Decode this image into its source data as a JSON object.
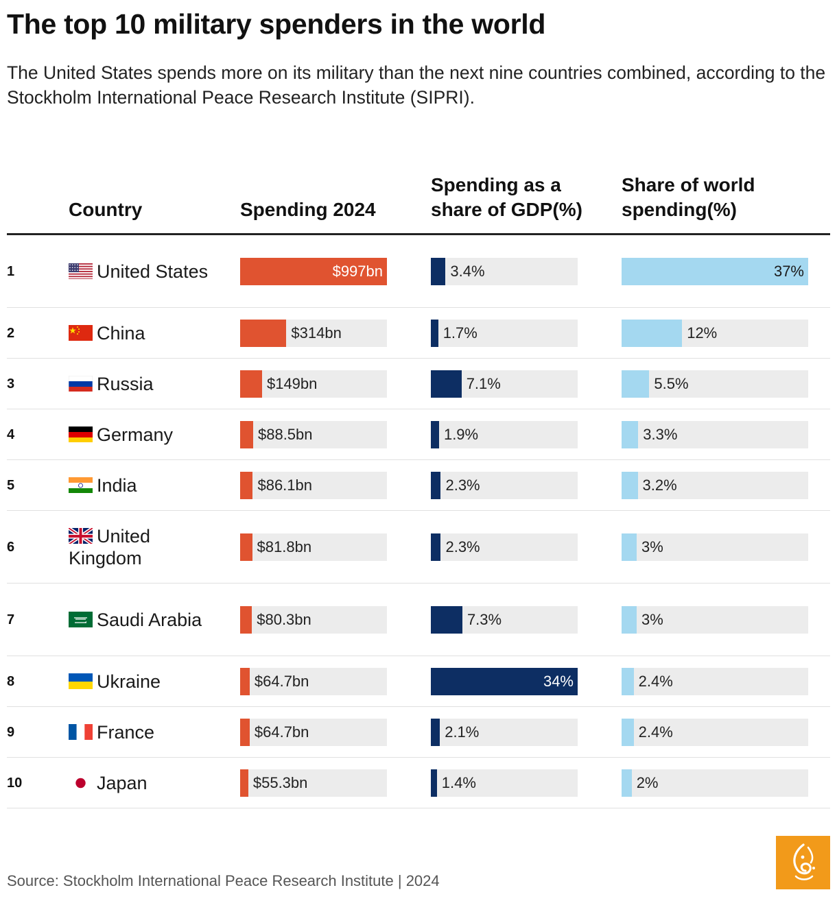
{
  "title": "The top 10 military spenders in the world",
  "subtitle": "The United States spends more on its military than the next nine countries combined, according to the Stockholm International Peace Research Institute (SIPRI).",
  "headers": {
    "country": "Country",
    "spending": "Spending 2024",
    "gdp": "Spending as a share of GDP(%)",
    "world": "Share of world spending(%)"
  },
  "source": "Source: Stockholm International Peace Research Institute | 2024",
  "colors": {
    "spending": "#e05330",
    "gdp": "#0d2e63",
    "world": "#a4d8f0",
    "track": "#ececec",
    "logo": "#f29a1a"
  },
  "chart_data": {
    "type": "table",
    "title": "The top 10 military spenders in the world",
    "columns": [
      "Country",
      "Spending 2024",
      "Spending as a share of GDP(%)",
      "Share of world spending(%)"
    ],
    "spending_max": 997,
    "gdp_max": 34,
    "world_max": 37,
    "rows": [
      {
        "rank": "1",
        "country": "United States",
        "flag": "us-flag-icon",
        "spending": 997,
        "spending_label": "$997bn",
        "gdp": 3.4,
        "gdp_label": "3.4%",
        "world": 37,
        "world_label": "37%"
      },
      {
        "rank": "2",
        "country": "China",
        "flag": "china-flag-icon",
        "spending": 314,
        "spending_label": "$314bn",
        "gdp": 1.7,
        "gdp_label": "1.7%",
        "world": 12,
        "world_label": "12%"
      },
      {
        "rank": "3",
        "country": "Russia",
        "flag": "russia-flag-icon",
        "spending": 149,
        "spending_label": "$149bn",
        "gdp": 7.1,
        "gdp_label": "7.1%",
        "world": 5.5,
        "world_label": "5.5%"
      },
      {
        "rank": "4",
        "country": "Germany",
        "flag": "germany-flag-icon",
        "spending": 88.5,
        "spending_label": "$88.5bn",
        "gdp": 1.9,
        "gdp_label": "1.9%",
        "world": 3.3,
        "world_label": "3.3%"
      },
      {
        "rank": "5",
        "country": "India",
        "flag": "india-flag-icon",
        "spending": 86.1,
        "spending_label": "$86.1bn",
        "gdp": 2.3,
        "gdp_label": "2.3%",
        "world": 3.2,
        "world_label": "3.2%"
      },
      {
        "rank": "6",
        "country": "United Kingdom",
        "flag": "uk-flag-icon",
        "spending": 81.8,
        "spending_label": "$81.8bn",
        "gdp": 2.3,
        "gdp_label": "2.3%",
        "world": 3,
        "world_label": "3%"
      },
      {
        "rank": "7",
        "country": "Saudi Arabia",
        "flag": "saudi-arabia-flag-icon",
        "spending": 80.3,
        "spending_label": "$80.3bn",
        "gdp": 7.3,
        "gdp_label": "7.3%",
        "world": 3,
        "world_label": "3%"
      },
      {
        "rank": "8",
        "country": "Ukraine",
        "flag": "ukraine-flag-icon",
        "spending": 64.7,
        "spending_label": "$64.7bn",
        "gdp": 34,
        "gdp_label": "34%",
        "world": 2.4,
        "world_label": "2.4%"
      },
      {
        "rank": "9",
        "country": "France",
        "flag": "france-flag-icon",
        "spending": 64.7,
        "spending_label": "$64.7bn",
        "gdp": 2.1,
        "gdp_label": "2.1%",
        "world": 2.4,
        "world_label": "2.4%"
      },
      {
        "rank": "10",
        "country": "Japan",
        "flag": "japan-flag-icon",
        "spending": 55.3,
        "spending_label": "$55.3bn",
        "gdp": 1.4,
        "gdp_label": "1.4%",
        "world": 2,
        "world_label": "2%"
      }
    ]
  }
}
